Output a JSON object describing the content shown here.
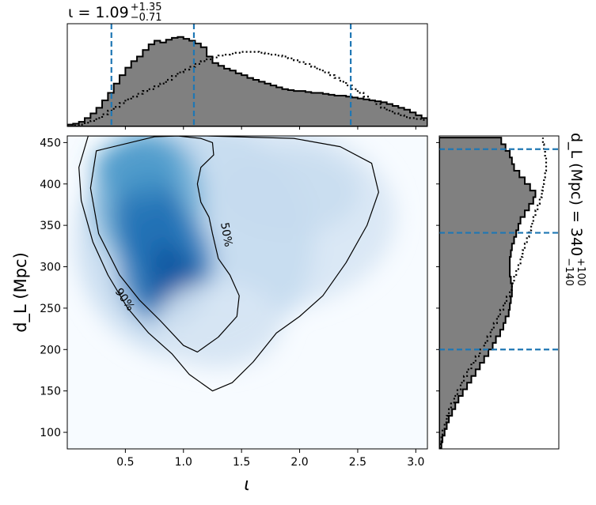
{
  "chart_data": [
    {
      "type": "histogram",
      "panel": "top-marginal",
      "title": "ι = 1.09",
      "title_sup": "+1.35",
      "title_sub": "−0.71",
      "variable": "ι",
      "xlim": [
        0.0,
        3.1
      ],
      "quantile_lines": [
        0.38,
        1.09,
        2.44
      ],
      "bin_width": 0.05,
      "posterior_filled": [
        0.02,
        0.03,
        0.05,
        0.09,
        0.14,
        0.2,
        0.28,
        0.36,
        0.46,
        0.55,
        0.63,
        0.7,
        0.75,
        0.82,
        0.88,
        0.92,
        0.9,
        0.93,
        0.95,
        0.96,
        0.94,
        0.92,
        0.89,
        0.85,
        0.75,
        0.68,
        0.65,
        0.62,
        0.6,
        0.57,
        0.55,
        0.52,
        0.5,
        0.48,
        0.46,
        0.44,
        0.42,
        0.4,
        0.39,
        0.38,
        0.38,
        0.37,
        0.36,
        0.36,
        0.35,
        0.34,
        0.33,
        0.33,
        0.32,
        0.31,
        0.3,
        0.29,
        0.28,
        0.27,
        0.26,
        0.24,
        0.22,
        0.2,
        0.18,
        0.15,
        0.12,
        0.09
      ],
      "prior_dotted": [
        0.0,
        0.01,
        0.02,
        0.04,
        0.06,
        0.09,
        0.13,
        0.17,
        0.21,
        0.25,
        0.29,
        0.32,
        0.35,
        0.38,
        0.4,
        0.43,
        0.46,
        0.5,
        0.54,
        0.58,
        0.61,
        0.64,
        0.67,
        0.7,
        0.72,
        0.74,
        0.76,
        0.77,
        0.78,
        0.79,
        0.8,
        0.8,
        0.8,
        0.79,
        0.78,
        0.77,
        0.76,
        0.75,
        0.73,
        0.71,
        0.69,
        0.67,
        0.64,
        0.61,
        0.58,
        0.55,
        0.52,
        0.48,
        0.44,
        0.4,
        0.36,
        0.32,
        0.28,
        0.24,
        0.2,
        0.17,
        0.14,
        0.12,
        0.1,
        0.09,
        0.08,
        0.07
      ]
    },
    {
      "type": "heatmap",
      "panel": "joint",
      "xlabel": "ι",
      "ylabel": "d_L (Mpc)",
      "xlim": [
        0.0,
        3.1
      ],
      "ylim": [
        80,
        458
      ],
      "xticks": [
        "0.5",
        "1.0",
        "1.5",
        "2.0",
        "2.5",
        "3.0"
      ],
      "yticks": [
        "100",
        "150",
        "200",
        "250",
        "300",
        "350",
        "400",
        "450"
      ],
      "colormap": "Blues",
      "peak": {
        "iota": 0.85,
        "dL": 300
      },
      "contours": [
        {
          "label": "50%",
          "label_at": {
            "iota": 1.34,
            "dL": 338
          },
          "points": [
            [
              0.75,
              457
            ],
            [
              0.25,
              440
            ],
            [
              0.2,
              395
            ],
            [
              0.27,
              340
            ],
            [
              0.45,
              290
            ],
            [
              0.62,
              260
            ],
            [
              0.8,
              235
            ],
            [
              1.0,
              205
            ],
            [
              1.12,
              197
            ],
            [
              1.3,
              215
            ],
            [
              1.46,
              240
            ],
            [
              1.48,
              265
            ],
            [
              1.4,
              290
            ],
            [
              1.3,
              310
            ],
            [
              1.25,
              340
            ],
            [
              1.22,
              360
            ],
            [
              1.15,
              378
            ],
            [
              1.12,
              400
            ],
            [
              1.15,
              420
            ],
            [
              1.26,
              435
            ],
            [
              1.25,
              450
            ],
            [
              1.15,
              455
            ],
            [
              0.95,
              458
            ]
          ]
        },
        {
          "label": "90%",
          "label_at": {
            "iota": 0.47,
            "dL": 258
          },
          "points": [
            [
              0.18,
              458
            ],
            [
              0.1,
              420
            ],
            [
              0.12,
              380
            ],
            [
              0.22,
              330
            ],
            [
              0.35,
              290
            ],
            [
              0.52,
              250
            ],
            [
              0.7,
              220
            ],
            [
              0.9,
              195
            ],
            [
              1.05,
              170
            ],
            [
              1.25,
              150
            ],
            [
              1.42,
              160
            ],
            [
              1.6,
              185
            ],
            [
              1.8,
              220
            ],
            [
              2.0,
              240
            ],
            [
              2.2,
              265
            ],
            [
              2.4,
              305
            ],
            [
              2.58,
              350
            ],
            [
              2.68,
              390
            ],
            [
              2.62,
              425
            ],
            [
              2.35,
              445
            ],
            [
              1.95,
              455
            ],
            [
              1.2,
              458
            ]
          ]
        }
      ]
    },
    {
      "type": "histogram",
      "panel": "right-marginal",
      "title": "d_L (Mpc) = 340",
      "title_sup": "+100",
      "title_sub": "−140",
      "variable": "d_L",
      "ylim": [
        80,
        458
      ],
      "quantile_lines": [
        200,
        341,
        442
      ],
      "bin_width": 8,
      "posterior_filled": [
        0.02,
        0.03,
        0.05,
        0.07,
        0.09,
        0.12,
        0.15,
        0.18,
        0.22,
        0.26,
        0.3,
        0.34,
        0.38,
        0.42,
        0.46,
        0.5,
        0.53,
        0.57,
        0.6,
        0.62,
        0.65,
        0.66,
        0.67,
        0.68,
        0.68,
        0.67,
        0.66,
        0.66,
        0.66,
        0.67,
        0.68,
        0.7,
        0.72,
        0.74,
        0.76,
        0.8,
        0.84,
        0.88,
        0.9,
        0.85,
        0.8,
        0.75,
        0.7,
        0.68,
        0.66,
        0.62,
        0.58
      ],
      "prior_dotted": [
        0.01,
        0.02,
        0.03,
        0.05,
        0.07,
        0.09,
        0.11,
        0.14,
        0.17,
        0.2,
        0.23,
        0.26,
        0.3,
        0.34,
        0.38,
        0.42,
        0.45,
        0.48,
        0.51,
        0.54,
        0.57,
        0.6,
        0.63,
        0.66,
        0.68,
        0.7,
        0.72,
        0.74,
        0.76,
        0.78,
        0.8,
        0.82,
        0.84,
        0.86,
        0.88,
        0.9,
        0.92,
        0.94,
        0.96,
        0.97,
        0.98,
        0.99,
        1.0,
        1.0,
        0.99,
        0.98,
        0.97
      ]
    }
  ]
}
